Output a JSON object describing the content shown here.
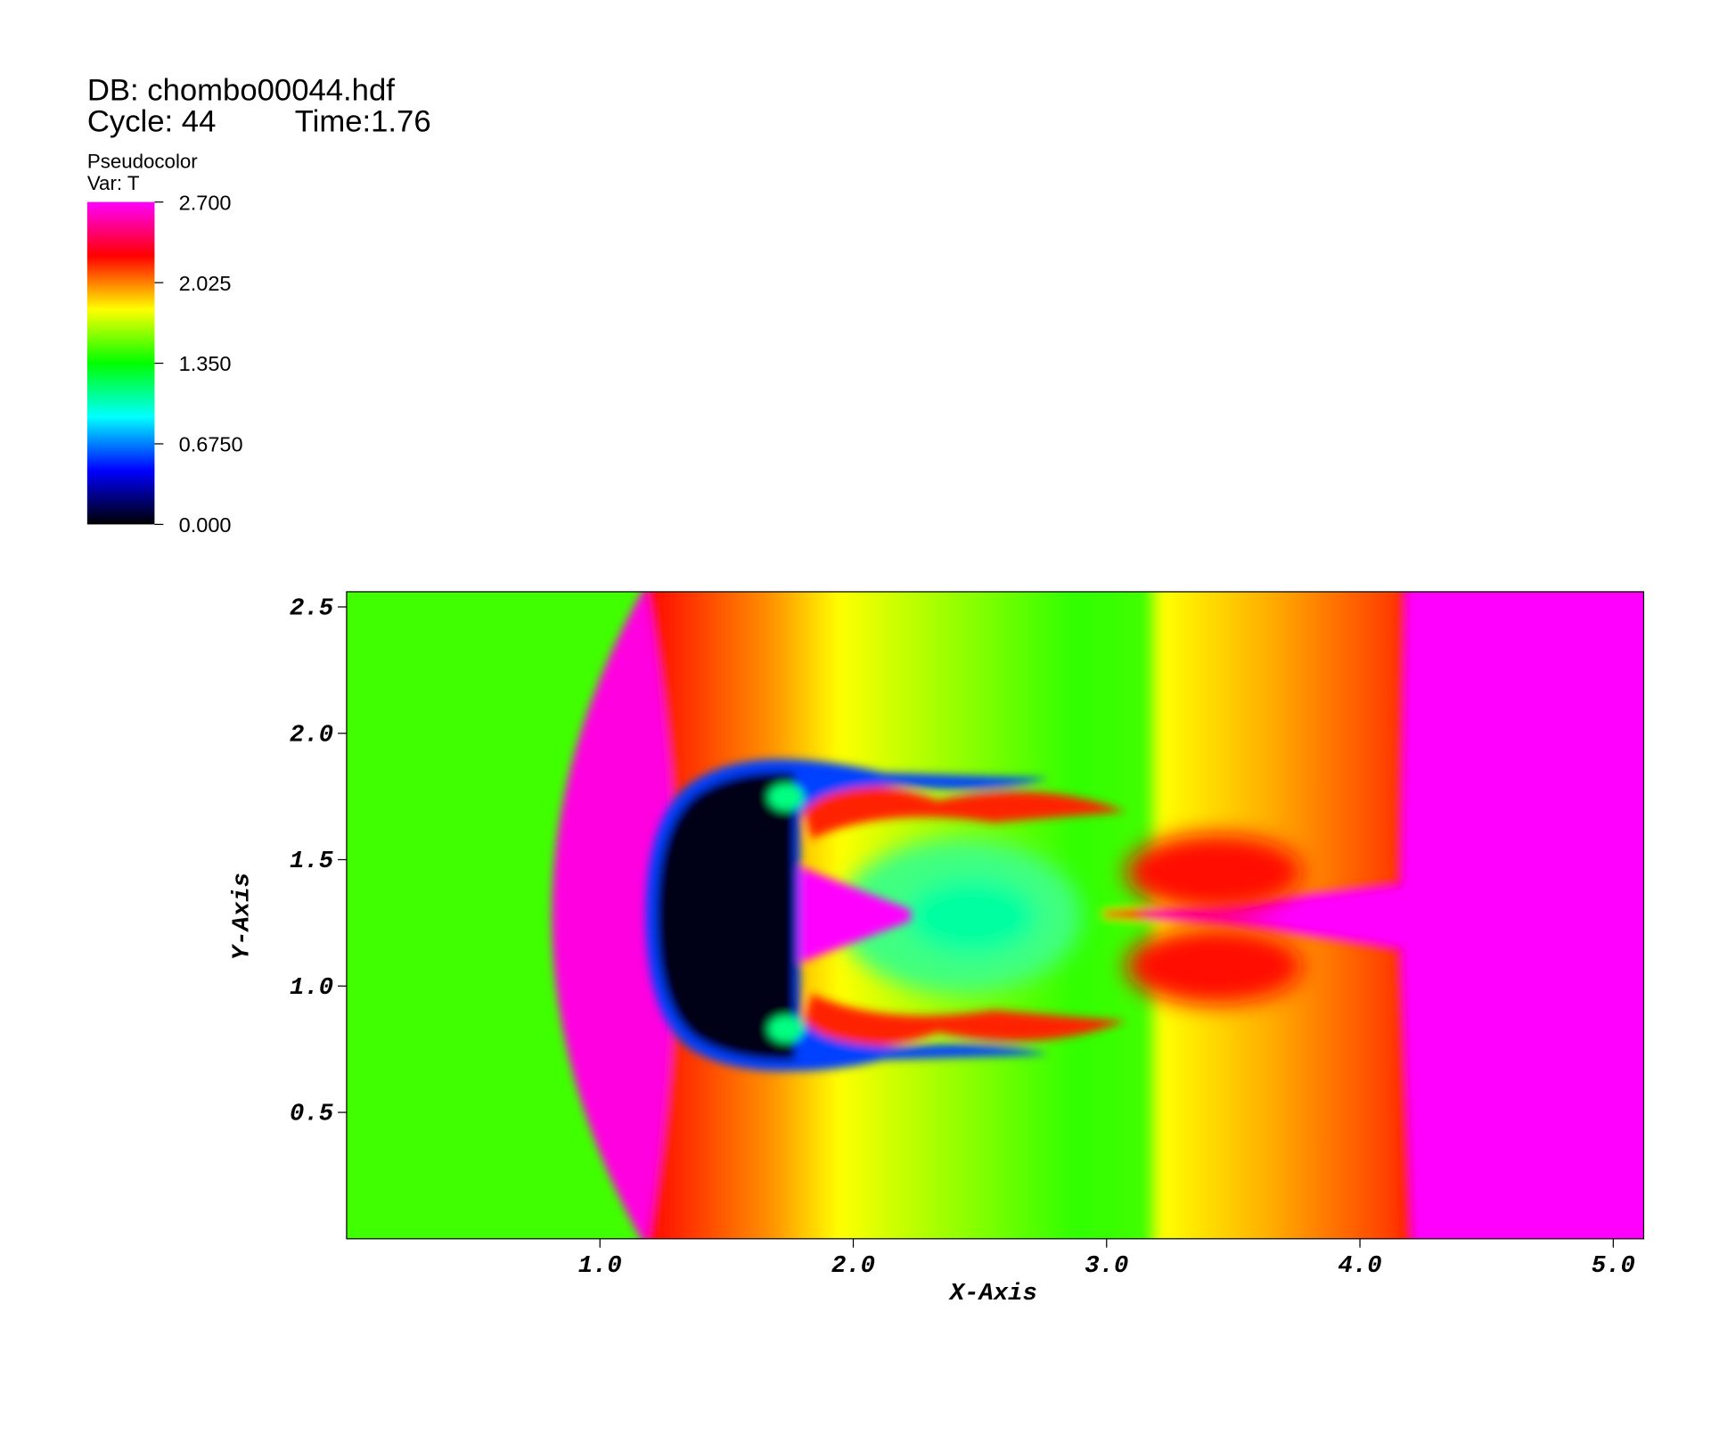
{
  "chart_data": {
    "type": "pseudocolor",
    "database": "DB: chombo00044.hdf",
    "cycle": "Cycle: 44",
    "time": "Time:1.76",
    "plot_type": "Pseudocolor",
    "variable": "Var: T",
    "xlabel": "X-Axis",
    "ylabel": "Y-Axis",
    "xlim": [
      0,
      5.12
    ],
    "xticks": [
      {
        "value": 1,
        "label": "1.0"
      },
      {
        "value": 2,
        "label": "2.0"
      },
      {
        "value": 3,
        "label": "3.0"
      },
      {
        "value": 4,
        "label": "4.0"
      },
      {
        "value": 5,
        "label": "5.0"
      }
    ],
    "ylim": [
      0,
      2.56
    ],
    "yticks": [
      {
        "value": 0.5,
        "label": "0.5"
      },
      {
        "value": 1,
        "label": "1.0"
      },
      {
        "value": 1.5,
        "label": "1.5"
      },
      {
        "value": 2,
        "label": "2.0"
      },
      {
        "value": 2.5,
        "label": "2.5"
      }
    ],
    "colorbar": {
      "lim": [
        0,
        2.7
      ],
      "ticks": [
        {
          "value": 2.7,
          "label": "2.700"
        },
        {
          "value": 2.025,
          "label": "2.025"
        },
        {
          "value": 1.35,
          "label": "1.350"
        },
        {
          "value": 0.675,
          "label": "0.6750"
        },
        {
          "value": 0,
          "label": "0.000"
        }
      ],
      "colors": [
        "#000000",
        "#0000ff",
        "#00ffff",
        "#00ff00",
        "#ffff00",
        "#ff0000",
        "#ff00ff"
      ]
    }
  }
}
